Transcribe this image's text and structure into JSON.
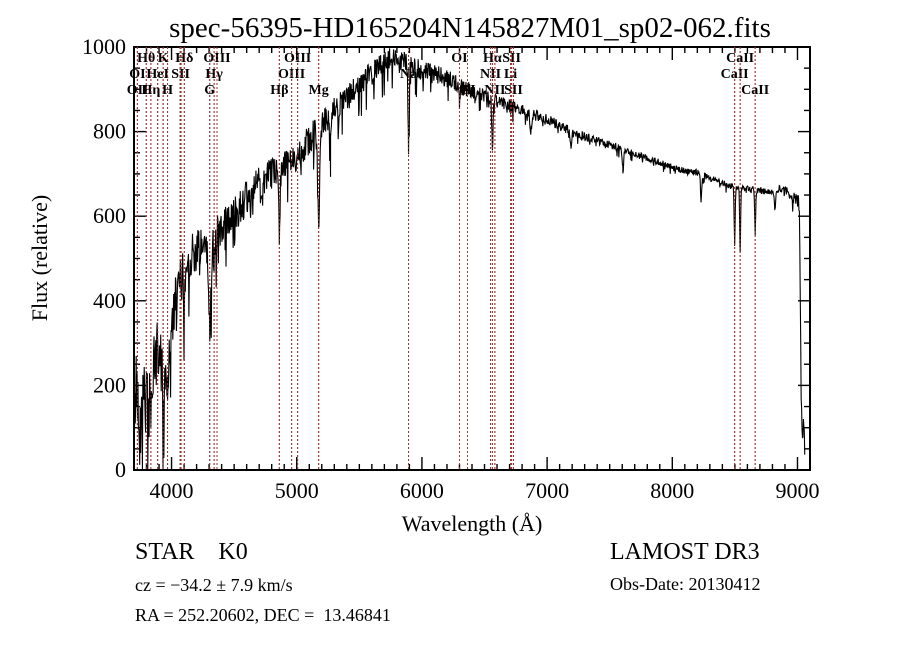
{
  "colors": {
    "background": "#ffffff",
    "spectrum_line": "#000000",
    "axis": "#000000",
    "marker_line": "#9b3530",
    "text": "#000000"
  },
  "annotations": {
    "object_class": "STAR    K0",
    "survey": "LAMOST DR3",
    "cz": "cz = −34.2 ± 7.9 km/s",
    "obs_date": "Obs-Date: 20130412",
    "coords": "RA = 252.20602, DEC =  13.46841"
  },
  "chart_data": {
    "type": "line",
    "title": "spec-56395-HD165204N145827M01_sp02-062.fits",
    "xlabel": "Wavelength (Å)",
    "ylabel": "Flux (relative)",
    "xlim": [
      3700,
      9100
    ],
    "ylim": [
      0,
      1000
    ],
    "x_major_ticks": [
      4000,
      5000,
      6000,
      7000,
      8000,
      9000
    ],
    "x_minor_step": 100,
    "y_major_ticks": [
      0,
      200,
      400,
      600,
      800,
      1000
    ],
    "y_minor_step": 50,
    "grid": false,
    "legend": "none",
    "marker_wavelengths": [
      3727,
      3798,
      3835,
      3889,
      3933,
      3968,
      4068,
      4076,
      4102,
      4305,
      4340,
      4363,
      4861,
      4959,
      5007,
      5175,
      5893,
      6300,
      6364,
      6548,
      6563,
      6583,
      6708,
      6716,
      6731,
      8498,
      8542,
      8662
    ],
    "spectral_markers": [
      {
        "label": "Hθ",
        "wavelength": 3798,
        "row": 1
      },
      {
        "label": "K",
        "wavelength": 3933,
        "row": 1
      },
      {
        "label": "Hδ",
        "wavelength": 4102,
        "row": 1
      },
      {
        "label": "OIII",
        "wavelength": 4363,
        "row": 1
      },
      {
        "label": "OIII",
        "wavelength": 5007,
        "row": 1
      },
      {
        "label": "OI",
        "wavelength": 6300,
        "row": 1
      },
      {
        "label": "Hα",
        "wavelength": 6563,
        "row": 1
      },
      {
        "label": "SII",
        "wavelength": 6716,
        "row": 1
      },
      {
        "label": "CaII",
        "wavelength": 8542,
        "row": 1
      },
      {
        "label": "OI",
        "wavelength": 3727,
        "row": 2
      },
      {
        "label": "HeI",
        "wavelength": 3889,
        "row": 2
      },
      {
        "label": "SII",
        "wavelength": 4072,
        "row": 2
      },
      {
        "label": "Hγ",
        "wavelength": 4340,
        "row": 2
      },
      {
        "label": "OIII",
        "wavelength": 4959,
        "row": 2
      },
      {
        "label": "Na",
        "wavelength": 5893,
        "row": 2
      },
      {
        "label": "NII",
        "wavelength": 6548,
        "row": 2
      },
      {
        "label": "Li",
        "wavelength": 6708,
        "row": 2
      },
      {
        "label": "CaII",
        "wavelength": 8498,
        "row": 2
      },
      {
        "label": "OII",
        "wavelength": 3729,
        "row": 3
      },
      {
        "label": "Hη",
        "wavelength": 3835,
        "row": 3
      },
      {
        "label": "H",
        "wavelength": 3968,
        "row": 3
      },
      {
        "label": "G",
        "wavelength": 4305,
        "row": 3
      },
      {
        "label": "Hβ",
        "wavelength": 4861,
        "row": 3
      },
      {
        "label": "Mg",
        "wavelength": 5175,
        "row": 3
      },
      {
        "label": "OI",
        "wavelength": 6364,
        "row": 3
      },
      {
        "label": "NII",
        "wavelength": 6583,
        "row": 3
      },
      {
        "label": "SII",
        "wavelength": 6731,
        "row": 3
      },
      {
        "label": "CaII",
        "wavelength": 8662,
        "row": 3
      }
    ],
    "series": [
      {
        "name": "spectrum",
        "x_start": 3703,
        "x_end": 9058,
        "n_points": 1500,
        "noise_seed": 42,
        "envelope": [
          [
            3703,
            40
          ],
          [
            3708,
            150
          ],
          [
            3715,
            210
          ],
          [
            3730,
            170
          ],
          [
            3745,
            215
          ],
          [
            3760,
            175
          ],
          [
            3775,
            230
          ],
          [
            3790,
            165
          ],
          [
            3805,
            150
          ],
          [
            3820,
            150
          ],
          [
            3835,
            165
          ],
          [
            3850,
            210
          ],
          [
            3865,
            245
          ],
          [
            3880,
            270
          ],
          [
            3895,
            280
          ],
          [
            3910,
            270
          ],
          [
            3925,
            250
          ],
          [
            3945,
            235
          ],
          [
            3960,
            245
          ],
          [
            3980,
            285
          ],
          [
            4000,
            330
          ],
          [
            4030,
            395
          ],
          [
            4060,
            435
          ],
          [
            4090,
            465
          ],
          [
            4120,
            485
          ],
          [
            4150,
            505
          ],
          [
            4200,
            520
          ],
          [
            4250,
            532
          ],
          [
            4300,
            542
          ],
          [
            4350,
            550
          ],
          [
            4400,
            568
          ],
          [
            4450,
            588
          ],
          [
            4500,
            608
          ],
          [
            4550,
            625
          ],
          [
            4600,
            642
          ],
          [
            4650,
            658
          ],
          [
            4700,
            678
          ],
          [
            4750,
            692
          ],
          [
            4800,
            698
          ],
          [
            4860,
            705
          ],
          [
            4900,
            718
          ],
          [
            4950,
            728
          ],
          [
            5000,
            742
          ],
          [
            5050,
            762
          ],
          [
            5100,
            782
          ],
          [
            5150,
            798
          ],
          [
            5200,
            818
          ],
          [
            5300,
            848
          ],
          [
            5400,
            878
          ],
          [
            5500,
            908
          ],
          [
            5600,
            938
          ],
          [
            5700,
            962
          ],
          [
            5750,
            972
          ],
          [
            5800,
            975
          ],
          [
            5850,
            968
          ],
          [
            5900,
            955
          ],
          [
            5950,
            950
          ],
          [
            6000,
            945
          ],
          [
            6100,
            935
          ],
          [
            6200,
            925
          ],
          [
            6300,
            908
          ],
          [
            6400,
            896
          ],
          [
            6500,
            886
          ],
          [
            6600,
            872
          ],
          [
            6700,
            862
          ],
          [
            6800,
            852
          ],
          [
            6900,
            838
          ],
          [
            7000,
            830
          ],
          [
            7100,
            815
          ],
          [
            7200,
            800
          ],
          [
            7300,
            790
          ],
          [
            7400,
            778
          ],
          [
            7500,
            769
          ],
          [
            7600,
            760
          ],
          [
            7700,
            748
          ],
          [
            7800,
            738
          ],
          [
            7900,
            726
          ],
          [
            8000,
            715
          ],
          [
            8100,
            708
          ],
          [
            8200,
            703
          ],
          [
            8300,
            690
          ],
          [
            8400,
            678
          ],
          [
            8500,
            670
          ],
          [
            8600,
            665
          ],
          [
            8700,
            660
          ],
          [
            8800,
            655
          ],
          [
            8850,
            665
          ],
          [
            8900,
            662
          ],
          [
            8950,
            650
          ],
          [
            9000,
            640
          ],
          [
            9015,
            628
          ],
          [
            9022,
            420
          ],
          [
            9030,
            160
          ],
          [
            9040,
            70
          ],
          [
            9050,
            110
          ],
          [
            9058,
            60
          ]
        ],
        "noise_profile": [
          [
            3703,
            90
          ],
          [
            3850,
            85
          ],
          [
            3950,
            70
          ],
          [
            4050,
            58
          ],
          [
            4200,
            50
          ],
          [
            4400,
            46
          ],
          [
            4700,
            40
          ],
          [
            5000,
            36
          ],
          [
            5300,
            33
          ],
          [
            5600,
            30
          ],
          [
            5900,
            26
          ],
          [
            6200,
            22
          ],
          [
            6500,
            16
          ],
          [
            6800,
            13
          ],
          [
            7100,
            11
          ],
          [
            7500,
            9
          ],
          [
            8000,
            8
          ],
          [
            8500,
            7
          ],
          [
            8900,
            8
          ],
          [
            9058,
            25
          ]
        ],
        "absorption_features": [
          {
            "wavelength": 3933,
            "depth": 110,
            "sigma": 5
          },
          {
            "wavelength": 3968,
            "depth": 95,
            "sigma": 5
          },
          {
            "wavelength": 4102,
            "depth": 85,
            "sigma": 5
          },
          {
            "wavelength": 4227,
            "depth": 60,
            "sigma": 4
          },
          {
            "wavelength": 4305,
            "depth": 195,
            "sigma": 11
          },
          {
            "wavelength": 4340,
            "depth": 55,
            "sigma": 4
          },
          {
            "wavelength": 4861,
            "depth": 135,
            "sigma": 5
          },
          {
            "wavelength": 5175,
            "depth": 215,
            "sigma": 8
          },
          {
            "wavelength": 5270,
            "depth": 70,
            "sigma": 5
          },
          {
            "wavelength": 5893,
            "depth": 185,
            "sigma": 5
          },
          {
            "wavelength": 6300,
            "depth": 35,
            "sigma": 4
          },
          {
            "wavelength": 6563,
            "depth": 125,
            "sigma": 4
          },
          {
            "wavelength": 6870,
            "depth": 40,
            "sigma": 7
          },
          {
            "wavelength": 7190,
            "depth": 40,
            "sigma": 7
          },
          {
            "wavelength": 7605,
            "depth": 50,
            "sigma": 7
          },
          {
            "wavelength": 8230,
            "depth": 60,
            "sigma": 5
          },
          {
            "wavelength": 8498,
            "depth": 135,
            "sigma": 4
          },
          {
            "wavelength": 8542,
            "depth": 150,
            "sigma": 4
          },
          {
            "wavelength": 8662,
            "depth": 100,
            "sigma": 4
          },
          {
            "wavelength": 8820,
            "depth": 45,
            "sigma": 5
          }
        ]
      }
    ]
  }
}
